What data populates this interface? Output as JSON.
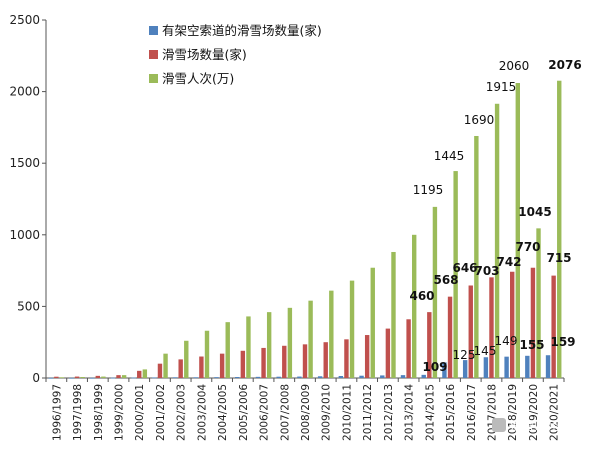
{
  "chart_data": {
    "type": "bar",
    "categories": [
      "1996/1997",
      "1997/1998",
      "1998/1999",
      "1999/2000",
      "2000/2001",
      "2001/2002",
      "2002/2003",
      "2003/2004",
      "2004/2005",
      "2005/2006",
      "2006/2007",
      "2007/2008",
      "2008/2009",
      "2009/2010",
      "2010/2011",
      "2011/2012",
      "2012/2013",
      "2013/2014",
      "2014/2015",
      "2015/2016",
      "2016/2017",
      "2017/2018",
      "2018/2019",
      "2019/2020",
      "2020/2021"
    ],
    "series": [
      {
        "name": "有架空索道的滑雪场数量(家)",
        "color": "#4f81bd",
        "values": [
          1,
          1,
          1,
          2,
          3,
          4,
          5,
          5,
          6,
          7,
          8,
          9,
          10,
          12,
          14,
          16,
          18,
          20,
          22,
          109,
          125,
          145,
          149,
          155,
          159
        ]
      },
      {
        "name": "滑雪场数量(家)",
        "color": "#c0504d",
        "values": [
          9,
          10,
          15,
          20,
          50,
          100,
          130,
          150,
          170,
          190,
          210,
          225,
          235,
          250,
          270,
          300,
          345,
          410,
          460,
          568,
          646,
          703,
          742,
          770,
          715
        ]
      },
      {
        "name": "滑雪人次(万)",
        "color": "#9bbb59",
        "values": [
          5,
          7,
          10,
          20,
          60,
          170,
          260,
          330,
          390,
          430,
          460,
          490,
          540,
          610,
          680,
          770,
          880,
          1000,
          1195,
          1445,
          1690,
          1915,
          2060,
          1045,
          2076
        ]
      }
    ],
    "data_labels": {
      "有架空索道的滑雪场数量(家)": [
        null,
        null,
        null,
        null,
        null,
        null,
        null,
        null,
        null,
        null,
        null,
        null,
        null,
        null,
        null,
        null,
        null,
        null,
        null,
        "109",
        "125",
        "145",
        "149",
        "155",
        "159"
      ],
      "滑雪场数量(家)": [
        null,
        null,
        null,
        null,
        null,
        null,
        null,
        null,
        null,
        null,
        null,
        null,
        null,
        null,
        null,
        null,
        null,
        null,
        "460",
        "568",
        "646",
        "703",
        "742",
        "770",
        "715"
      ],
      "滑雪人次(万)": [
        null,
        null,
        null,
        null,
        null,
        null,
        null,
        null,
        null,
        null,
        null,
        null,
        null,
        null,
        null,
        null,
        null,
        null,
        "1195",
        "1445",
        "1690",
        "1915",
        "2060",
        "1045",
        "2076"
      ]
    },
    "title": "",
    "xlabel": "",
    "ylabel": "",
    "ylim": [
      0,
      2500
    ],
    "yticks": [
      0,
      500,
      1000,
      1500,
      2000,
      2500
    ],
    "grid": false,
    "legend_position": "top-left"
  },
  "watermark": "滑雪财经"
}
